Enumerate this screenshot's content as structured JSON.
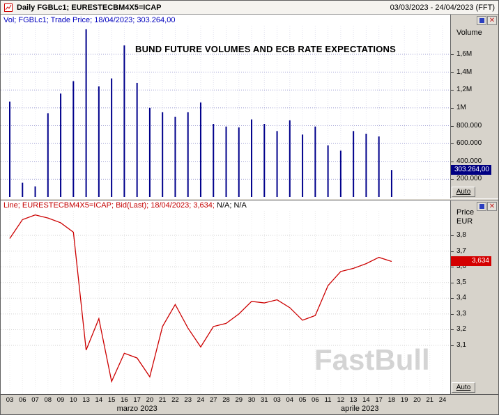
{
  "window": {
    "title": "Daily FGBLc1; EURESTECBM4X5=ICAP",
    "date_range": "03/03/2023 - 24/04/2023 (FFT)"
  },
  "volume_panel": {
    "legend": "Vol; FGBLc1; Trade Price; 18/04/2023; 303.264,00",
    "chart_title": "BUND FUTURE VOLUMES AND ECB RATE EXPECTATIONS",
    "axis_title": "Volume",
    "last_value_label": "303.264,00",
    "auto_label": "Auto"
  },
  "line_panel": {
    "legend_main": "Line; EURESTECBM4X5=ICAP; Bid(Last);  18/04/2023; 3,634;",
    "legend_na": " N/A; N/A",
    "axis_title_line1": "Price",
    "axis_title_line2": "EUR",
    "last_value_label": "3,634",
    "auto_label": "Auto"
  },
  "x_axis": {
    "labels": [
      "03",
      "06",
      "07",
      "08",
      "09",
      "10",
      "13",
      "14",
      "15",
      "16",
      "17",
      "20",
      "21",
      "22",
      "23",
      "24",
      "27",
      "28",
      "29",
      "30",
      "31",
      "03",
      "04",
      "05",
      "06",
      "11",
      "12",
      "13",
      "14",
      "17",
      "18",
      "19",
      "20",
      "21",
      "24"
    ],
    "months": [
      {
        "label": "marzo 2023",
        "from": 0,
        "to": 20
      },
      {
        "label": "aprile 2023",
        "from": 21,
        "to": 34
      }
    ]
  },
  "watermark": "FastBull",
  "colors": {
    "bar": "#00008b",
    "line": "#cc0000",
    "volume_box_bg": "#000082",
    "price_box_bg": "#d40000",
    "legend_volume": "#0000bd",
    "legend_line": "#c40000"
  },
  "chart_data": [
    {
      "type": "bar",
      "title": "BUND FUTURE VOLUMES AND ECB RATE EXPECTATIONS",
      "ylabel": "Volume",
      "categories": [
        "03/03",
        "06/03",
        "07/03",
        "08/03",
        "09/03",
        "10/03",
        "13/03",
        "14/03",
        "15/03",
        "16/03",
        "17/03",
        "20/03",
        "21/03",
        "22/03",
        "23/03",
        "24/03",
        "27/03",
        "28/03",
        "29/03",
        "30/03",
        "31/03",
        "03/04",
        "04/04",
        "05/04",
        "06/04",
        "11/04",
        "12/04",
        "13/04",
        "14/04",
        "17/04",
        "18/04"
      ],
      "values": [
        1070000,
        160000,
        120000,
        940000,
        1160000,
        1300000,
        1880000,
        1240000,
        1330000,
        1700000,
        1280000,
        1000000,
        950000,
        900000,
        950000,
        1060000,
        820000,
        790000,
        780000,
        870000,
        820000,
        740000,
        860000,
        700000,
        790000,
        580000,
        520000,
        740000,
        710000,
        680000,
        303264
      ],
      "ylim": [
        0,
        1920000
      ],
      "yticks": [
        {
          "value": 1600000,
          "label": "1,6M"
        },
        {
          "value": 1400000,
          "label": "1,4M"
        },
        {
          "value": 1200000,
          "label": "1,2M"
        },
        {
          "value": 1000000,
          "label": "1M"
        },
        {
          "value": 800000,
          "label": "800.000"
        },
        {
          "value": 600000,
          "label": "600.000"
        },
        {
          "value": 400000,
          "label": "400.000"
        },
        {
          "value": 200000,
          "label": "200.000"
        }
      ],
      "grid": true,
      "last_value": 303264,
      "last_value_label": "303.264,00"
    },
    {
      "type": "line",
      "title": "",
      "ylabel": "Price EUR",
      "categories": [
        "03/03",
        "06/03",
        "07/03",
        "08/03",
        "09/03",
        "10/03",
        "13/03",
        "14/03",
        "15/03",
        "16/03",
        "17/03",
        "20/03",
        "21/03",
        "22/03",
        "23/03",
        "24/03",
        "27/03",
        "28/03",
        "29/03",
        "30/03",
        "31/03",
        "03/04",
        "04/04",
        "05/04",
        "06/04",
        "11/04",
        "12/04",
        "13/04",
        "14/04",
        "17/04",
        "18/04"
      ],
      "series": [
        {
          "name": "EURESTECBM4X5=ICAP Bid(Last)",
          "values": [
            3.78,
            3.9,
            3.93,
            3.91,
            3.88,
            3.82,
            3.07,
            3.27,
            2.87,
            3.05,
            3.02,
            2.9,
            3.22,
            3.36,
            3.21,
            3.09,
            3.22,
            3.24,
            3.3,
            3.38,
            3.37,
            3.39,
            3.34,
            3.26,
            3.29,
            3.48,
            3.57,
            3.59,
            3.62,
            3.66,
            3.634
          ]
        }
      ],
      "ylim": [
        2.79,
        3.955
      ],
      "yticks": [
        {
          "value": 3.8,
          "label": "3,8"
        },
        {
          "value": 3.7,
          "label": "3,7"
        },
        {
          "value": 3.6,
          "label": "3,6"
        },
        {
          "value": 3.5,
          "label": "3,5"
        },
        {
          "value": 3.4,
          "label": "3,4"
        },
        {
          "value": 3.3,
          "label": "3,3"
        },
        {
          "value": 3.2,
          "label": "3,2"
        },
        {
          "value": 3.1,
          "label": "3,1"
        }
      ],
      "grid": true,
      "last_value": 3.634,
      "last_value_label": "3,634"
    }
  ]
}
